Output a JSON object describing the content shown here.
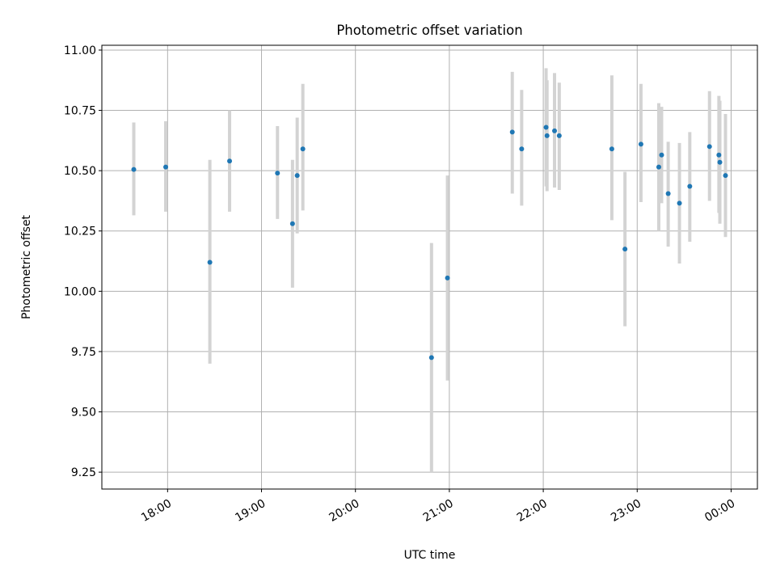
{
  "chart_data": {
    "type": "scatter",
    "title": "Photometric offset variation",
    "xlabel": "UTC time",
    "ylabel": "Photometric offset",
    "x_unit": "hours after 17:00 UTC",
    "xlim": [
      0.3,
      7.28
    ],
    "ylim": [
      9.18,
      11.02
    ],
    "grid": true,
    "yticks": [
      9.25,
      9.5,
      9.75,
      10.0,
      10.25,
      10.5,
      10.75,
      11.0
    ],
    "ytick_labels": [
      "9.25",
      "9.50",
      "9.75",
      "10.00",
      "10.25",
      "10.50",
      "10.75",
      "11.00"
    ],
    "xticks": [
      1,
      2,
      3,
      4,
      5,
      6,
      7
    ],
    "xtick_labels": [
      "18:00",
      "19:00",
      "20:00",
      "21:00",
      "22:00",
      "23:00",
      "00:00"
    ],
    "point_color": "#1f77b4",
    "errorbar_color": "#d3d3d3",
    "points": [
      {
        "x": 0.64,
        "y": 10.505,
        "lo": 10.315,
        "hi": 10.7
      },
      {
        "x": 0.98,
        "y": 10.515,
        "lo": 10.33,
        "hi": 10.705
      },
      {
        "x": 1.45,
        "y": 10.12,
        "lo": 9.7,
        "hi": 10.545
      },
      {
        "x": 1.66,
        "y": 10.54,
        "lo": 10.33,
        "hi": 10.75
      },
      {
        "x": 2.17,
        "y": 10.49,
        "lo": 10.3,
        "hi": 10.685
      },
      {
        "x": 2.33,
        "y": 10.28,
        "lo": 10.015,
        "hi": 10.545
      },
      {
        "x": 2.38,
        "y": 10.48,
        "lo": 10.24,
        "hi": 10.72
      },
      {
        "x": 2.44,
        "y": 10.59,
        "lo": 10.335,
        "hi": 10.86
      },
      {
        "x": 3.81,
        "y": 9.725,
        "lo": 9.25,
        "hi": 10.2
      },
      {
        "x": 3.98,
        "y": 10.055,
        "lo": 9.63,
        "hi": 10.48
      },
      {
        "x": 4.67,
        "y": 10.66,
        "lo": 10.405,
        "hi": 10.91
      },
      {
        "x": 4.77,
        "y": 10.59,
        "lo": 10.355,
        "hi": 10.835
      },
      {
        "x": 5.03,
        "y": 10.68,
        "lo": 10.435,
        "hi": 10.925
      },
      {
        "x": 5.04,
        "y": 10.645,
        "lo": 10.415,
        "hi": 10.875
      },
      {
        "x": 5.12,
        "y": 10.665,
        "lo": 10.43,
        "hi": 10.905
      },
      {
        "x": 5.17,
        "y": 10.645,
        "lo": 10.42,
        "hi": 10.865
      },
      {
        "x": 5.73,
        "y": 10.59,
        "lo": 10.295,
        "hi": 10.895
      },
      {
        "x": 5.87,
        "y": 10.175,
        "lo": 9.855,
        "hi": 10.495
      },
      {
        "x": 6.04,
        "y": 10.61,
        "lo": 10.37,
        "hi": 10.86
      },
      {
        "x": 6.23,
        "y": 10.515,
        "lo": 10.25,
        "hi": 10.78
      },
      {
        "x": 6.26,
        "y": 10.565,
        "lo": 10.365,
        "hi": 10.765
      },
      {
        "x": 6.33,
        "y": 10.405,
        "lo": 10.185,
        "hi": 10.62
      },
      {
        "x": 6.45,
        "y": 10.365,
        "lo": 10.115,
        "hi": 10.615
      },
      {
        "x": 6.56,
        "y": 10.435,
        "lo": 10.205,
        "hi": 10.66
      },
      {
        "x": 6.77,
        "y": 10.6,
        "lo": 10.375,
        "hi": 10.83
      },
      {
        "x": 6.87,
        "y": 10.565,
        "lo": 10.325,
        "hi": 10.81
      },
      {
        "x": 6.88,
        "y": 10.535,
        "lo": 10.28,
        "hi": 10.79
      },
      {
        "x": 6.94,
        "y": 10.48,
        "lo": 10.225,
        "hi": 10.735
      }
    ]
  }
}
